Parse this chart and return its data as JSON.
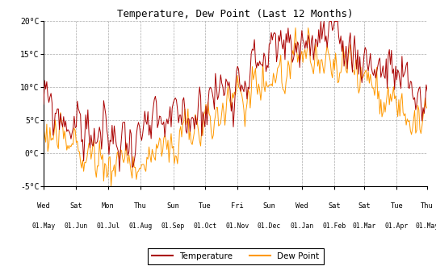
{
  "title": "Temperature, Dew Point (Last 12 Months)",
  "ylim": [
    -5,
    20
  ],
  "yticks": [
    -5,
    0,
    5,
    10,
    15,
    20
  ],
  "ytick_labels": [
    "-5°C",
    "0°C",
    "5°C",
    "10°C",
    "15°C",
    "20°C"
  ],
  "temp_color": "#aa0000",
  "dew_color": "#ff9900",
  "bg_color": "#ffffff",
  "grid_color": "#aaaaaa",
  "line_width": 0.7,
  "xtick_top_labels": [
    "Wed",
    "Sat",
    "Mon",
    "Thu",
    "Sun",
    "Tue",
    "Fri",
    "Sun",
    "Wed",
    "Sat",
    "Sat",
    "Tue",
    "Thu"
  ],
  "xtick_bottom_labels": [
    "01.May",
    "01.Jun",
    "01.Jul",
    "01.Aug",
    "01.Sep",
    "01.Oct",
    "01.Nov",
    "01.Dec",
    "01.Jan",
    "01.Feb",
    "01.Mar",
    "01.Apr",
    "01.May"
  ],
  "legend_temp_label": "Temperature",
  "legend_dew_label": "Dew Point",
  "num_points": 365,
  "month_days": [
    0,
    31,
    61,
    92,
    123,
    153,
    184,
    214,
    245,
    276,
    304,
    335,
    364
  ]
}
